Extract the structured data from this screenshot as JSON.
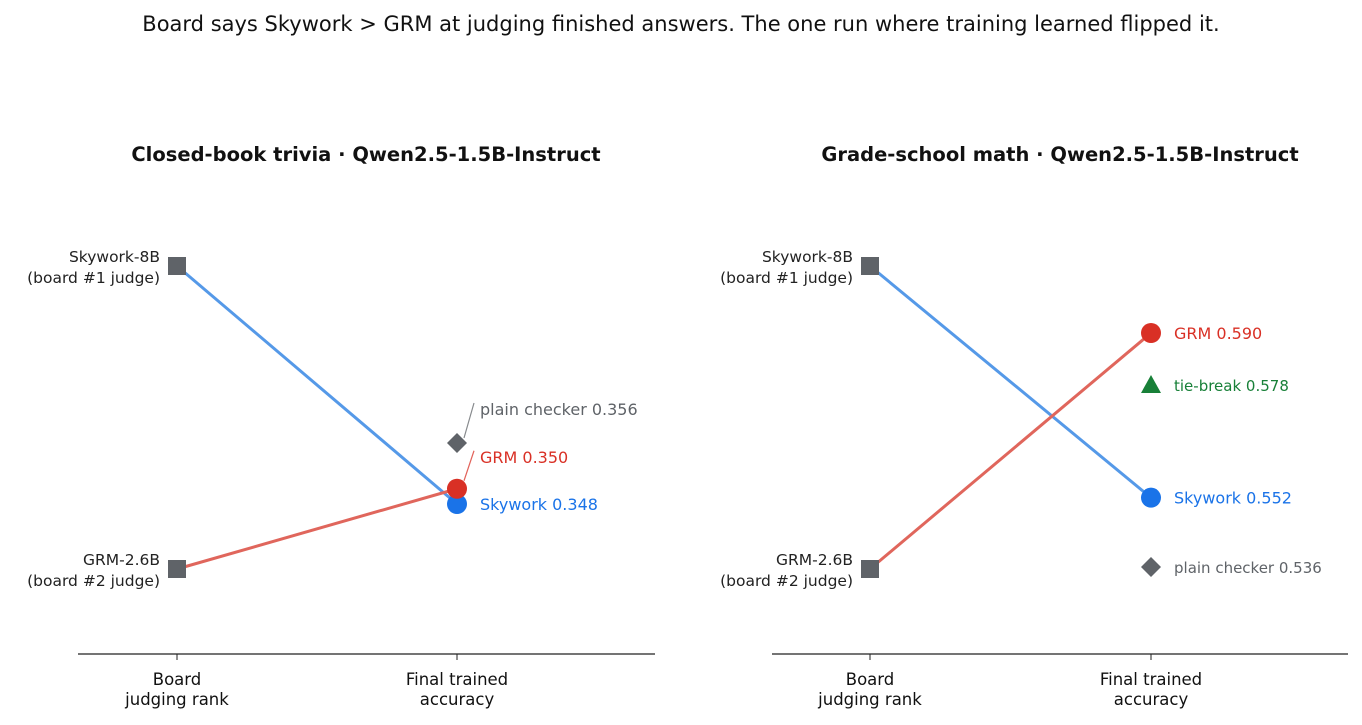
{
  "suptitle": "Board says Skywork > GRM at judging finished answers. The one run where training learned flipped it.",
  "colors": {
    "skywork_line": "#5599e8",
    "skywork_point": "#1a73e8",
    "grm_line": "#e0665c",
    "grm_point": "#d93025",
    "judge_marker": "#5f6368",
    "tiebreak": "#188038",
    "plain_checker": "#5f6368"
  },
  "chart_data": [
    {
      "type": "slope",
      "title": "Closed-book trivia · Qwen2.5-1.5B-Instruct",
      "x_categories": [
        "Board\njudging rank",
        "Final trained\naccuracy"
      ],
      "board_rank": [
        {
          "label": "Skywork-8B\n(board #1 judge)",
          "rank": 1
        },
        {
          "label": "GRM-2.6B\n(board #2 judge)",
          "rank": 2
        }
      ],
      "final_accuracy": [
        {
          "name": "Skywork",
          "value": 0.348,
          "annotation": "Skywork  0.348",
          "marker": "circle",
          "color": "#1a73e8"
        },
        {
          "name": "GRM",
          "value": 0.35,
          "annotation": "GRM  0.350",
          "marker": "circle",
          "color": "#d93025"
        },
        {
          "name": "plain checker",
          "value": 0.356,
          "annotation": "plain checker  0.356",
          "marker": "diamond",
          "color": "#5f6368"
        }
      ]
    },
    {
      "type": "slope",
      "title": "Grade-school math · Qwen2.5-1.5B-Instruct",
      "x_categories": [
        "Board\njudging rank",
        "Final trained\naccuracy"
      ],
      "board_rank": [
        {
          "label": "Skywork-8B\n(board #1 judge)",
          "rank": 1
        },
        {
          "label": "GRM-2.6B\n(board #2 judge)",
          "rank": 2
        }
      ],
      "final_accuracy": [
        {
          "name": "GRM",
          "value": 0.59,
          "annotation": "GRM  0.590",
          "marker": "circle",
          "color": "#d93025"
        },
        {
          "name": "tie-break",
          "value": 0.578,
          "annotation": "tie-break  0.578",
          "marker": "triangle",
          "color": "#188038"
        },
        {
          "name": "Skywork",
          "value": 0.552,
          "annotation": "Skywork  0.552",
          "marker": "circle",
          "color": "#1a73e8"
        },
        {
          "name": "plain checker",
          "value": 0.536,
          "annotation": "plain checker  0.536",
          "marker": "diamond",
          "color": "#5f6368"
        }
      ]
    }
  ]
}
